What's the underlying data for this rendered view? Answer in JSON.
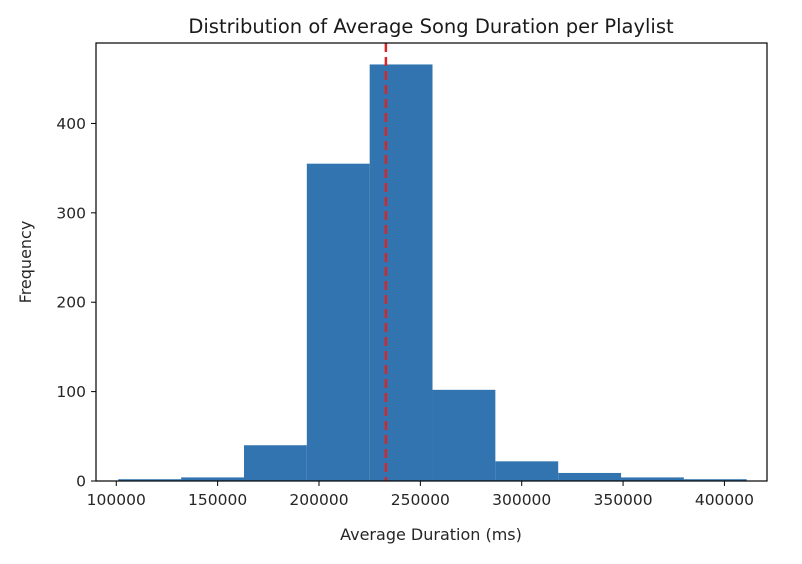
{
  "chart_data": {
    "type": "bar",
    "title": "Distribution of Average Song Duration per Playlist",
    "xlabel": "Average Duration (ms)",
    "ylabel": "Frequency",
    "xlim": [
      90000,
      421000
    ],
    "ylim": [
      0,
      490
    ],
    "bins": [
      {
        "x0": 101000,
        "x1": 132000,
        "value": 2
      },
      {
        "x0": 132000,
        "x1": 163000,
        "value": 4
      },
      {
        "x0": 163000,
        "x1": 194000,
        "value": 40
      },
      {
        "x0": 194000,
        "x1": 225000,
        "value": 355
      },
      {
        "x0": 225000,
        "x1": 256000,
        "value": 466
      },
      {
        "x0": 256000,
        "x1": 287000,
        "value": 102
      },
      {
        "x0": 287000,
        "x1": 318000,
        "value": 22
      },
      {
        "x0": 318000,
        "x1": 349000,
        "value": 9
      },
      {
        "x0": 349000,
        "x1": 380000,
        "value": 4
      },
      {
        "x0": 380000,
        "x1": 411000,
        "value": 2
      }
    ],
    "xticks": [
      100000,
      150000,
      200000,
      250000,
      300000,
      350000,
      400000
    ],
    "yticks": [
      0,
      100,
      200,
      300,
      400
    ],
    "mean_line": 233000,
    "bar_color": "#3274b0",
    "line_color": "#d62728",
    "grid": false
  }
}
